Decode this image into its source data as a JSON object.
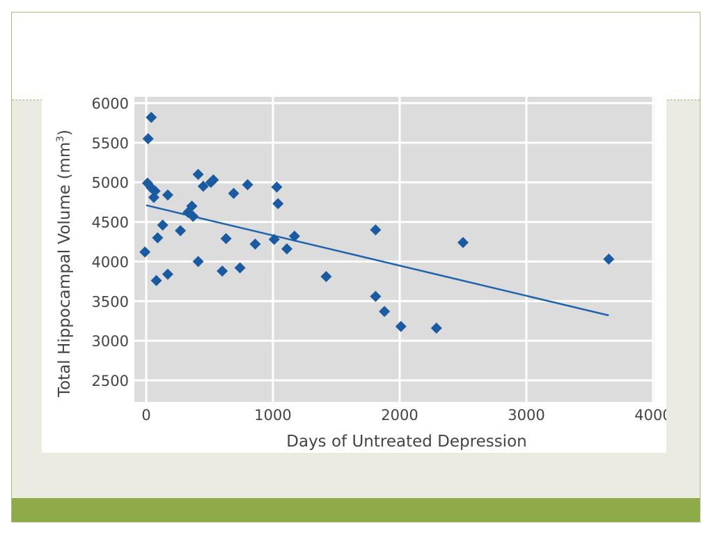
{
  "slide": {
    "colors": {
      "frame_border": "#a9bd7a",
      "body_background": "#ecebe1",
      "footer_bar": "#8faa48",
      "divider": "#9fb36a"
    }
  },
  "chart_data": {
    "type": "scatter",
    "title": "",
    "xlabel": "Days of Untreated Depression",
    "ylabel_main": "Total Hippocampal Volume (mm",
    "ylabel_sup": "3",
    "ylabel_close": ")",
    "xlim": [
      0,
      4000
    ],
    "ylim": [
      2500,
      6000
    ],
    "x_ticks": [
      0,
      1000,
      2000,
      3000,
      4000
    ],
    "y_ticks": [
      2500,
      3000,
      3500,
      4000,
      4500,
      5000,
      5500,
      6000
    ],
    "grid": true,
    "plot_background": "#dcdcdc",
    "grid_color": "#ffffff",
    "marker": "diamond",
    "marker_color": "#1a5aa0",
    "line_color": "#1f63ad",
    "points": [
      [
        -10,
        4120
      ],
      [
        15,
        5550
      ],
      [
        40,
        5820
      ],
      [
        10,
        4990
      ],
      [
        40,
        4930
      ],
      [
        70,
        4890
      ],
      [
        60,
        4810
      ],
      [
        90,
        4300
      ],
      [
        130,
        4460
      ],
      [
        80,
        3760
      ],
      [
        170,
        4840
      ],
      [
        170,
        3840
      ],
      [
        270,
        4390
      ],
      [
        330,
        4620
      ],
      [
        360,
        4700
      ],
      [
        370,
        4570
      ],
      [
        410,
        5100
      ],
      [
        450,
        4950
      ],
      [
        510,
        5000
      ],
      [
        530,
        5030
      ],
      [
        410,
        4000
      ],
      [
        600,
        3880
      ],
      [
        630,
        4290
      ],
      [
        690,
        4860
      ],
      [
        740,
        3920
      ],
      [
        800,
        4970
      ],
      [
        860,
        4220
      ],
      [
        1030,
        4940
      ],
      [
        1040,
        4730
      ],
      [
        1010,
        4280
      ],
      [
        1110,
        4160
      ],
      [
        1170,
        4320
      ],
      [
        1420,
        3810
      ],
      [
        1810,
        4400
      ],
      [
        1810,
        3560
      ],
      [
        1880,
        3370
      ],
      [
        2010,
        3180
      ],
      [
        2290,
        3160
      ],
      [
        2500,
        4240
      ],
      [
        3650,
        4030
      ]
    ],
    "trendline": {
      "x": [
        0,
        3650
      ],
      "y": [
        4710,
        3320
      ]
    }
  }
}
